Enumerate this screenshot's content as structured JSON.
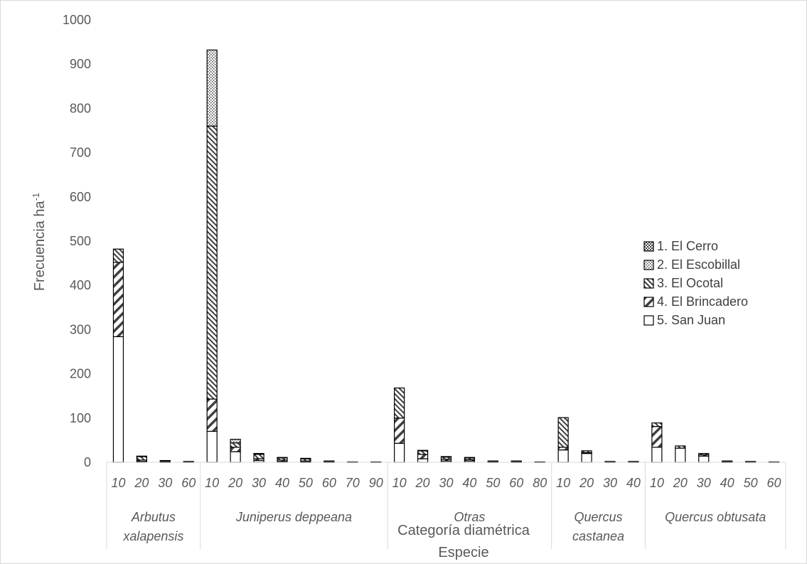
{
  "chart_data": {
    "type": "bar",
    "stacked": true,
    "ylabel": "Frecuencia ha-1",
    "xlabel_inner": "Categoría diamétrica",
    "xlabel_outer": "Especie",
    "ylim": [
      0,
      1000
    ],
    "yticks": [
      0,
      100,
      200,
      300,
      400,
      500,
      600,
      700,
      800,
      900,
      1000
    ],
    "grid": false,
    "legend_position": "right",
    "groups": [
      {
        "name": "Arbutus xalapensis",
        "label_lines": [
          "Arbutus",
          "xalapensis"
        ],
        "categories": [
          "10",
          "20",
          "30",
          "60"
        ]
      },
      {
        "name": "Juniperus deppeana",
        "label_lines": [
          "Juniperus deppeana"
        ],
        "categories": [
          "10",
          "20",
          "30",
          "40",
          "50",
          "60",
          "70",
          "90"
        ]
      },
      {
        "name": "Otras",
        "label_lines": [
          "Otras"
        ],
        "categories": [
          "10",
          "20",
          "30",
          "40",
          "50",
          "60",
          "80"
        ]
      },
      {
        "name": "Quercus castanea",
        "label_lines": [
          "Quercus",
          "castanea"
        ],
        "categories": [
          "10",
          "20",
          "30",
          "40"
        ]
      },
      {
        "name": "Quercus obtusata",
        "label_lines": [
          "Quercus obtusata"
        ],
        "categories": [
          "10",
          "20",
          "30",
          "40",
          "50",
          "60"
        ]
      }
    ],
    "series": [
      {
        "name": "5. San Juan",
        "pattern": "white",
        "values": [
          284,
          2,
          1,
          1,
          70,
          24,
          4,
          2,
          1,
          1,
          0,
          0,
          43,
          8,
          3,
          3,
          1,
          1,
          0,
          28,
          20,
          1,
          1,
          34,
          32,
          14,
          1,
          1,
          0
        ]
      },
      {
        "name": "4. El Brincadero",
        "pattern": "diag-wide",
        "values": [
          168,
          3,
          1,
          0,
          73,
          10,
          4,
          3,
          2,
          1,
          0,
          0,
          57,
          10,
          4,
          3,
          1,
          1,
          0,
          6,
          2,
          0,
          0,
          47,
          0,
          3,
          1,
          0,
          0
        ]
      },
      {
        "name": "3. El Ocotal",
        "pattern": "diag-dense",
        "values": [
          30,
          8,
          2,
          1,
          617,
          10,
          10,
          5,
          5,
          1,
          1,
          1,
          68,
          8,
          5,
          4,
          1,
          1,
          1,
          67,
          4,
          1,
          1,
          8,
          5,
          3,
          1,
          1,
          1
        ]
      },
      {
        "name": "2. El Escobillal",
        "pattern": "dots",
        "values": [
          0,
          1,
          0,
          0,
          172,
          8,
          2,
          1,
          1,
          0,
          0,
          0,
          0,
          1,
          1,
          1,
          0,
          0,
          0,
          0,
          0,
          0,
          0,
          0,
          0,
          0,
          0,
          0,
          0
        ]
      },
      {
        "name": "1. El Cerro",
        "pattern": "checker",
        "values": [
          0,
          0,
          0,
          0,
          0,
          0,
          0,
          0,
          0,
          0,
          0,
          0,
          0,
          0,
          0,
          0,
          0,
          0,
          0,
          0,
          0,
          0,
          0,
          0,
          0,
          0,
          0,
          0,
          0
        ]
      }
    ],
    "legend_order": [
      "1. El Cerro",
      "2. El Escobillal",
      "3. El Ocotal",
      "4. El Brincadero",
      "5. San Juan"
    ]
  }
}
